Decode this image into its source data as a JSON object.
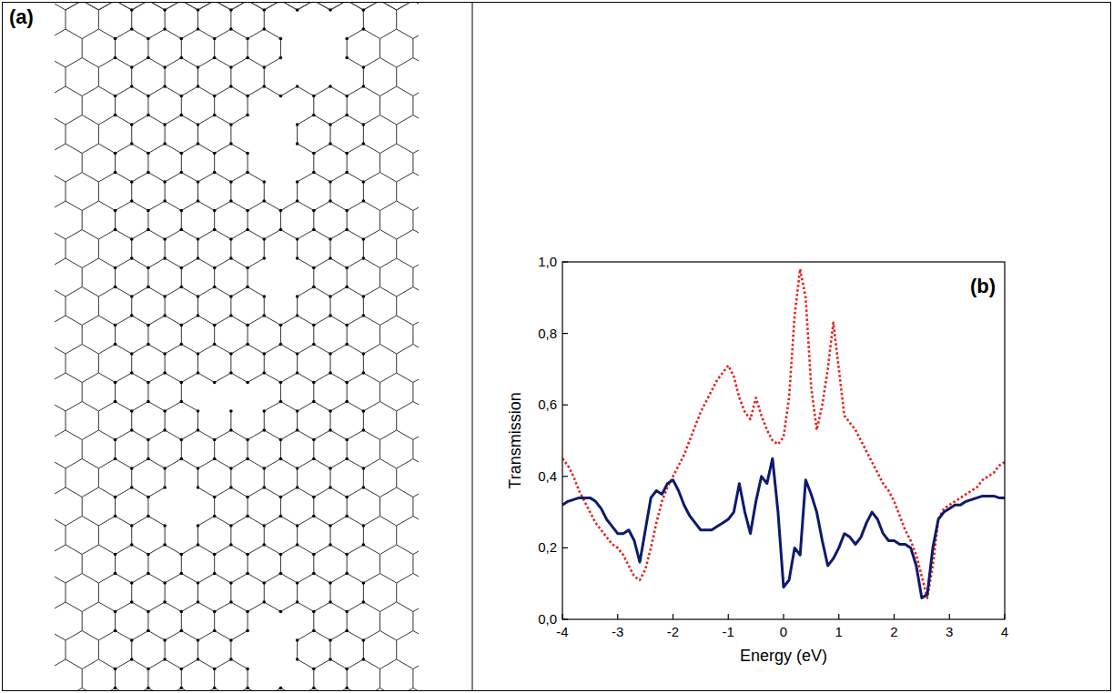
{
  "panel_labels": [
    "(a)",
    "(b)"
  ],
  "chart_data": {
    "type": "line",
    "x_label": "Energy (eV)",
    "y_label": "Transmission",
    "xlim": [
      -4,
      4
    ],
    "ylim": [
      0,
      1.0
    ],
    "xticks": [
      -4,
      -3,
      -2,
      -1,
      0,
      1,
      2,
      3,
      4
    ],
    "yticks": [
      {
        "value": 0,
        "label": "0,0"
      },
      {
        "value": 0.2,
        "label": "0,2"
      },
      {
        "value": 0.4,
        "label": "0,4"
      },
      {
        "value": 0.6,
        "label": "0,6"
      },
      {
        "value": 0.8,
        "label": "0,8"
      },
      {
        "value": 1.0,
        "label": "1,0"
      }
    ],
    "grid": false,
    "x": [
      -4.0,
      -3.9,
      -3.8,
      -3.7,
      -3.6,
      -3.5,
      -3.4,
      -3.3,
      -3.2,
      -3.1,
      -3.0,
      -2.9,
      -2.8,
      -2.7,
      -2.6,
      -2.5,
      -2.4,
      -2.3,
      -2.2,
      -2.1,
      -2.0,
      -1.9,
      -1.8,
      -1.7,
      -1.6,
      -1.5,
      -1.4,
      -1.3,
      -1.2,
      -1.1,
      -1.0,
      -0.9,
      -0.8,
      -0.7,
      -0.6,
      -0.5,
      -0.4,
      -0.3,
      -0.2,
      -0.1,
      0.0,
      0.1,
      0.2,
      0.3,
      0.4,
      0.5,
      0.6,
      0.7,
      0.8,
      0.9,
      1.0,
      1.1,
      1.2,
      1.3,
      1.4,
      1.5,
      1.6,
      1.7,
      1.8,
      1.9,
      2.0,
      2.1,
      2.2,
      2.3,
      2.4,
      2.5,
      2.6,
      2.7,
      2.8,
      2.9,
      3.0,
      3.1,
      3.2,
      3.3,
      3.4,
      3.5,
      3.6,
      3.7,
      3.8,
      3.9,
      4.0
    ],
    "series": [
      {
        "color": "#e8201c",
        "line_style": "dotted",
        "values": [
          0.45,
          0.43,
          0.4,
          0.36,
          0.33,
          0.3,
          0.27,
          0.25,
          0.23,
          0.21,
          0.2,
          0.18,
          0.15,
          0.12,
          0.11,
          0.14,
          0.2,
          0.27,
          0.33,
          0.37,
          0.4,
          0.43,
          0.46,
          0.5,
          0.54,
          0.58,
          0.61,
          0.64,
          0.67,
          0.69,
          0.71,
          0.68,
          0.62,
          0.58,
          0.56,
          0.62,
          0.57,
          0.53,
          0.5,
          0.49,
          0.51,
          0.62,
          0.85,
          0.98,
          0.9,
          0.65,
          0.53,
          0.6,
          0.7,
          0.83,
          0.7,
          0.57,
          0.55,
          0.53,
          0.5,
          0.47,
          0.44,
          0.41,
          0.38,
          0.36,
          0.33,
          0.29,
          0.25,
          0.22,
          0.18,
          0.12,
          0.06,
          0.15,
          0.28,
          0.31,
          0.32,
          0.33,
          0.34,
          0.35,
          0.36,
          0.37,
          0.39,
          0.4,
          0.41,
          0.43,
          0.44
        ]
      },
      {
        "color": "#0b1a6e",
        "line_style": "solid",
        "values": [
          0.32,
          0.33,
          0.335,
          0.34,
          0.34,
          0.34,
          0.33,
          0.31,
          0.28,
          0.26,
          0.24,
          0.24,
          0.25,
          0.22,
          0.16,
          0.25,
          0.34,
          0.36,
          0.35,
          0.38,
          0.39,
          0.36,
          0.32,
          0.29,
          0.27,
          0.25,
          0.25,
          0.25,
          0.26,
          0.27,
          0.28,
          0.3,
          0.38,
          0.3,
          0.24,
          0.33,
          0.4,
          0.38,
          0.45,
          0.3,
          0.09,
          0.11,
          0.2,
          0.18,
          0.39,
          0.35,
          0.3,
          0.22,
          0.15,
          0.17,
          0.2,
          0.24,
          0.23,
          0.21,
          0.23,
          0.27,
          0.3,
          0.28,
          0.24,
          0.22,
          0.22,
          0.21,
          0.21,
          0.2,
          0.15,
          0.06,
          0.07,
          0.2,
          0.28,
          0.3,
          0.31,
          0.32,
          0.32,
          0.33,
          0.335,
          0.34,
          0.345,
          0.345,
          0.345,
          0.34,
          0.34
        ]
      }
    ]
  }
}
